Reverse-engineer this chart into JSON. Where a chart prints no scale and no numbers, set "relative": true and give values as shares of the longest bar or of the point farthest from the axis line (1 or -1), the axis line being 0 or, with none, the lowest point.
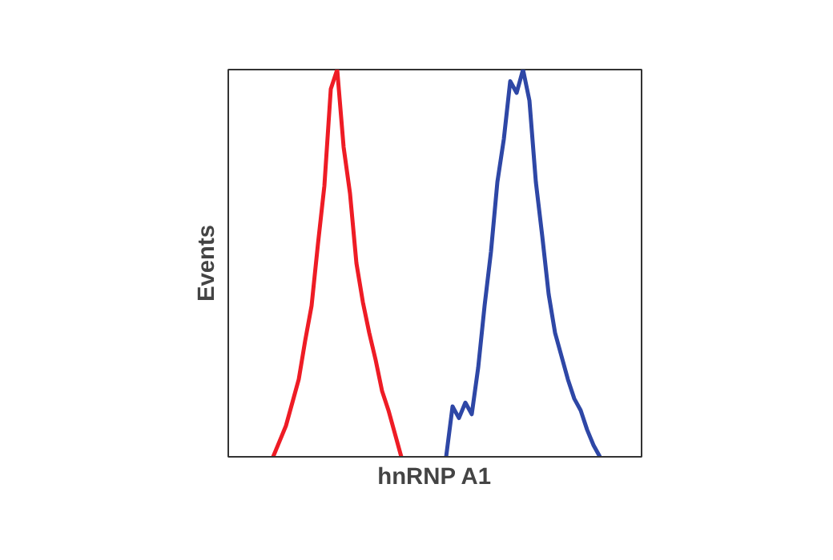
{
  "chart_data": {
    "type": "line",
    "relative": true,
    "xlabel": "hnRNP A1",
    "ylabel": "Events",
    "categories": [
      null,
      null,
      null,
      null,
      null,
      null,
      null,
      null,
      null,
      null,
      null,
      null,
      null,
      null,
      null,
      null,
      null,
      null,
      null,
      null,
      null,
      null,
      null,
      null,
      null,
      null,
      null,
      null,
      null,
      null,
      null,
      null,
      null,
      null,
      null,
      null,
      null,
      null,
      null,
      null,
      null,
      null,
      null,
      null,
      null,
      null,
      null,
      null,
      null,
      null,
      null,
      null,
      null,
      null,
      null,
      null,
      null,
      null,
      null,
      null,
      null,
      null,
      null,
      null,
      null
    ],
    "series": [
      {
        "color": "#ee1c25",
        "values": [
          null,
          null,
          null,
          null,
          null,
          null,
          null,
          0,
          0.04,
          0.08,
          0.14,
          0.2,
          0.3,
          0.39,
          0.55,
          0.7,
          0.95,
          1,
          0.8,
          0.68,
          0.5,
          0.4,
          0.32,
          0.25,
          0.17,
          0.12,
          0.06,
          0,
          null,
          null,
          null,
          null,
          null,
          null,
          null,
          null,
          null,
          null,
          null,
          null,
          null,
          null,
          null,
          null,
          null,
          null,
          null,
          null,
          null,
          null,
          null,
          null,
          null,
          null,
          null,
          null,
          null,
          null,
          null,
          null,
          null,
          null,
          null,
          null,
          null
        ]
      },
      {
        "color": "#2e47a6",
        "values": [
          null,
          null,
          null,
          null,
          null,
          null,
          null,
          null,
          null,
          null,
          null,
          null,
          null,
          null,
          null,
          null,
          null,
          null,
          null,
          null,
          null,
          null,
          null,
          null,
          null,
          null,
          null,
          null,
          null,
          null,
          null,
          null,
          null,
          null,
          0,
          0.13,
          0.1,
          0.14,
          0.11,
          0.23,
          0.39,
          0.53,
          0.71,
          0.82,
          0.97,
          0.94,
          1,
          0.92,
          0.71,
          0.57,
          0.42,
          0.32,
          0.26,
          0.2,
          0.15,
          0.12,
          0.07,
          0.03,
          0,
          null,
          null,
          null,
          null,
          null,
          null
        ]
      }
    ]
  }
}
